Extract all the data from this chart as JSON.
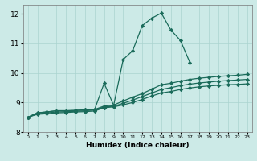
{
  "xlabel": "Humidex (Indice chaleur)",
  "xlim": [
    -0.5,
    23.5
  ],
  "ylim": [
    8,
    12.3
  ],
  "yticks": [
    8,
    9,
    10,
    11,
    12
  ],
  "xticks": [
    0,
    1,
    2,
    3,
    4,
    5,
    6,
    7,
    8,
    9,
    10,
    11,
    12,
    13,
    14,
    15,
    16,
    17,
    18,
    19,
    20,
    21,
    22,
    23
  ],
  "background_color": "#cceae7",
  "grid_color": "#aad4d0",
  "line_color": "#1a6b5a",
  "lines": [
    {
      "x": [
        0,
        1,
        2,
        3,
        4,
        5,
        6,
        7,
        8,
        9,
        10,
        11,
        12,
        13,
        14,
        15,
        16,
        17
      ],
      "y": [
        8.5,
        8.65,
        8.68,
        8.72,
        8.72,
        8.73,
        8.75,
        8.76,
        8.82,
        8.9,
        10.45,
        10.75,
        11.6,
        11.85,
        12.02,
        11.45,
        11.1,
        10.35
      ],
      "marker": "D",
      "markersize": 2.2,
      "linewidth": 0.9
    },
    {
      "x": [
        0,
        1,
        2,
        3,
        4,
        5,
        6,
        7,
        8,
        9,
        10,
        11,
        12,
        13,
        14,
        15,
        16,
        17,
        18,
        19,
        20,
        21,
        22,
        23
      ],
      "y": [
        8.5,
        8.65,
        8.68,
        8.72,
        8.72,
        8.73,
        8.75,
        8.76,
        8.88,
        8.91,
        9.05,
        9.18,
        9.3,
        9.45,
        9.6,
        9.65,
        9.72,
        9.78,
        9.82,
        9.85,
        9.88,
        9.9,
        9.92,
        9.95
      ],
      "marker": "D",
      "markersize": 2.2,
      "linewidth": 0.9
    },
    {
      "x": [
        0,
        1,
        2,
        3,
        4,
        5,
        6,
        7,
        8,
        9,
        10,
        11,
        12,
        13,
        14,
        15,
        16,
        17,
        18,
        19,
        20,
        21,
        22,
        23
      ],
      "y": [
        8.5,
        8.62,
        8.65,
        8.68,
        8.69,
        8.7,
        8.72,
        8.74,
        8.85,
        8.87,
        8.97,
        9.08,
        9.2,
        9.32,
        9.44,
        9.5,
        9.57,
        9.62,
        9.66,
        9.69,
        9.72,
        9.74,
        9.76,
        9.78
      ],
      "marker": "D",
      "markersize": 2.2,
      "linewidth": 0.9
    },
    {
      "x": [
        0,
        1,
        2,
        3,
        4,
        5,
        6,
        7,
        8,
        9,
        10,
        11,
        12,
        13,
        14,
        15,
        16,
        17,
        18,
        19,
        20,
        21,
        22,
        23
      ],
      "y": [
        8.5,
        8.6,
        8.62,
        8.65,
        8.66,
        8.68,
        8.69,
        8.71,
        8.82,
        8.85,
        8.92,
        9.0,
        9.1,
        9.22,
        9.32,
        9.37,
        9.44,
        9.49,
        9.53,
        9.56,
        9.58,
        9.6,
        9.61,
        9.63
      ],
      "marker": "D",
      "markersize": 2.2,
      "linewidth": 0.9
    },
    {
      "x": [
        7,
        8,
        9
      ],
      "y": [
        8.76,
        9.65,
        8.9
      ],
      "marker": "D",
      "markersize": 2.2,
      "linewidth": 0.9
    }
  ]
}
